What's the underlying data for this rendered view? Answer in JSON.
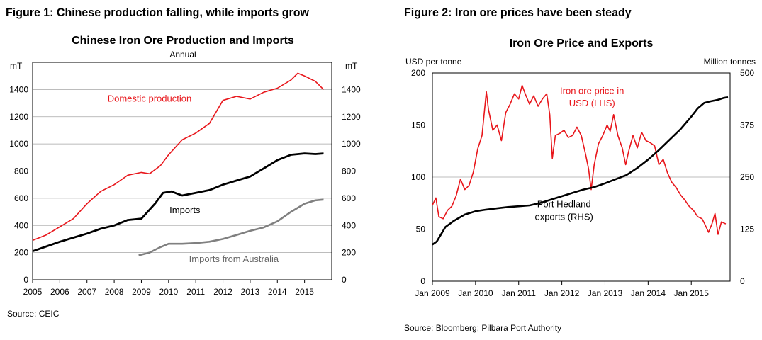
{
  "figure1": {
    "heading": "Figure 1: Chinese production falling, while imports grow",
    "source": "Source: CEIC"
  },
  "figure2": {
    "heading": "Figure 2: Iron ore prices have been steady",
    "source": "Source: Bloomberg; Pilbara Port Authority"
  },
  "colors": {
    "red": "#e8161b",
    "black": "#000000",
    "grey": "#808080",
    "grid": "#a6a6a6"
  },
  "chart_data": [
    {
      "type": "line",
      "title": "Chinese Iron Ore Production and Imports",
      "subtitle": "Annual",
      "ylabel_left": "mT",
      "ylabel_right": "mT",
      "ylim": [
        0,
        1600
      ],
      "yticks": [
        0,
        200,
        400,
        600,
        800,
        1000,
        1200,
        1400
      ],
      "xlim": [
        2005,
        2016
      ],
      "xticks": [
        2005,
        2006,
        2007,
        2008,
        2009,
        2010,
        2011,
        2012,
        2013,
        2014,
        2015
      ],
      "grid": true,
      "series": [
        {
          "name": "Domestic production",
          "label": "Domestic production",
          "color": "#e8161b",
          "x": [
            2005.0,
            2005.5,
            2006.0,
            2006.5,
            2007.0,
            2007.5,
            2008.0,
            2008.5,
            2009.0,
            2009.3,
            2009.7,
            2010.0,
            2010.5,
            2011.0,
            2011.5,
            2012.0,
            2012.5,
            2013.0,
            2013.5,
            2014.0,
            2014.5,
            2014.75,
            2015.0,
            2015.4,
            2015.7
          ],
          "values": [
            290,
            330,
            390,
            450,
            560,
            650,
            700,
            770,
            790,
            780,
            840,
            920,
            1030,
            1080,
            1150,
            1320,
            1350,
            1330,
            1380,
            1410,
            1470,
            1520,
            1500,
            1460,
            1400
          ]
        },
        {
          "name": "Imports",
          "label": "Imports",
          "color": "#000000",
          "x": [
            2005.0,
            2005.5,
            2006.0,
            2006.5,
            2007.0,
            2007.5,
            2008.0,
            2008.5,
            2009.0,
            2009.5,
            2009.8,
            2010.1,
            2010.5,
            2011.0,
            2011.5,
            2012.0,
            2012.5,
            2013.0,
            2013.5,
            2014.0,
            2014.5,
            2015.0,
            2015.4,
            2015.7
          ],
          "values": [
            210,
            245,
            280,
            310,
            340,
            375,
            400,
            440,
            450,
            560,
            640,
            650,
            620,
            640,
            660,
            700,
            730,
            760,
            820,
            880,
            920,
            930,
            925,
            930
          ]
        },
        {
          "name": "Imports from Australia",
          "label": "Imports from Australia",
          "color": "#808080",
          "x": [
            2008.9,
            2009.3,
            2009.7,
            2010.0,
            2010.5,
            2011.0,
            2011.5,
            2012.0,
            2012.5,
            2013.0,
            2013.5,
            2014.0,
            2014.5,
            2015.0,
            2015.4,
            2015.7
          ],
          "values": [
            180,
            200,
            240,
            265,
            265,
            270,
            280,
            300,
            330,
            360,
            385,
            430,
            500,
            560,
            585,
            590
          ]
        }
      ]
    },
    {
      "type": "line",
      "title": "Iron Ore Price and Exports",
      "ylabel_left": "USD per tonne",
      "ylabel_right": "Million tonnes",
      "ylim_left": [
        0,
        200
      ],
      "yticks_left": [
        0,
        50,
        100,
        150,
        200
      ],
      "ylim_right": [
        0,
        500
      ],
      "yticks_right": [
        0,
        125,
        250,
        375,
        500
      ],
      "xlim": [
        2009.0,
        2015.9
      ],
      "xticks": [
        2009,
        2010,
        2011,
        2012,
        2013,
        2014,
        2015
      ],
      "xtick_labels": [
        "Jan 2009",
        "Jan 2010",
        "Jan 2011",
        "Jan 2012",
        "Jan 2013",
        "Jan 2014",
        "Jan 2015"
      ],
      "grid": true,
      "series": [
        {
          "name": "Iron ore price in USD (LHS)",
          "label_lines": [
            "Iron ore price in",
            "USD (LHS)"
          ],
          "axis": "left",
          "color": "#e8161b",
          "x": [
            2009.0,
            2009.08,
            2009.15,
            2009.25,
            2009.35,
            2009.45,
            2009.55,
            2009.65,
            2009.75,
            2009.85,
            2009.95,
            2010.05,
            2010.15,
            2010.25,
            2010.3,
            2010.4,
            2010.5,
            2010.6,
            2010.7,
            2010.8,
            2010.9,
            2011.0,
            2011.08,
            2011.15,
            2011.25,
            2011.35,
            2011.45,
            2011.55,
            2011.65,
            2011.72,
            2011.78,
            2011.85,
            2011.95,
            2012.05,
            2012.15,
            2012.25,
            2012.35,
            2012.45,
            2012.55,
            2012.62,
            2012.68,
            2012.75,
            2012.85,
            2012.95,
            2013.05,
            2013.12,
            2013.2,
            2013.3,
            2013.4,
            2013.48,
            2013.55,
            2013.65,
            2013.75,
            2013.85,
            2013.95,
            2014.05,
            2014.15,
            2014.25,
            2014.35,
            2014.45,
            2014.55,
            2014.65,
            2014.75,
            2014.85,
            2014.95,
            2015.05,
            2015.15,
            2015.25,
            2015.3,
            2015.4,
            2015.48,
            2015.55,
            2015.62,
            2015.7,
            2015.8
          ],
          "values": [
            73,
            80,
            62,
            60,
            68,
            72,
            82,
            98,
            88,
            92,
            105,
            127,
            140,
            182,
            165,
            145,
            150,
            135,
            162,
            170,
            180,
            175,
            188,
            180,
            170,
            178,
            168,
            175,
            180,
            160,
            118,
            140,
            142,
            145,
            138,
            140,
            148,
            140,
            122,
            108,
            88,
            112,
            132,
            140,
            150,
            144,
            160,
            140,
            128,
            112,
            125,
            140,
            128,
            143,
            135,
            133,
            130,
            112,
            117,
            104,
            95,
            90,
            83,
            78,
            72,
            68,
            62,
            60,
            56,
            47,
            55,
            65,
            45,
            57,
            55
          ]
        },
        {
          "name": "Port Hedland exports (RHS)",
          "label_lines": [
            "Port Hedland",
            "exports (RHS)"
          ],
          "axis": "right",
          "color": "#000000",
          "x": [
            2009.0,
            2009.1,
            2009.3,
            2009.5,
            2009.75,
            2010.0,
            2010.25,
            2010.5,
            2010.75,
            2011.0,
            2011.25,
            2011.5,
            2011.75,
            2012.0,
            2012.25,
            2012.5,
            2012.75,
            2013.0,
            2013.25,
            2013.5,
            2013.75,
            2014.0,
            2014.25,
            2014.5,
            2014.75,
            2015.0,
            2015.15,
            2015.3,
            2015.45,
            2015.6,
            2015.75,
            2015.85
          ],
          "values": [
            88,
            95,
            130,
            145,
            160,
            168,
            172,
            175,
            178,
            180,
            182,
            188,
            196,
            204,
            212,
            220,
            226,
            235,
            245,
            255,
            272,
            292,
            315,
            340,
            365,
            395,
            415,
            428,
            432,
            435,
            440,
            442
          ]
        }
      ]
    }
  ]
}
